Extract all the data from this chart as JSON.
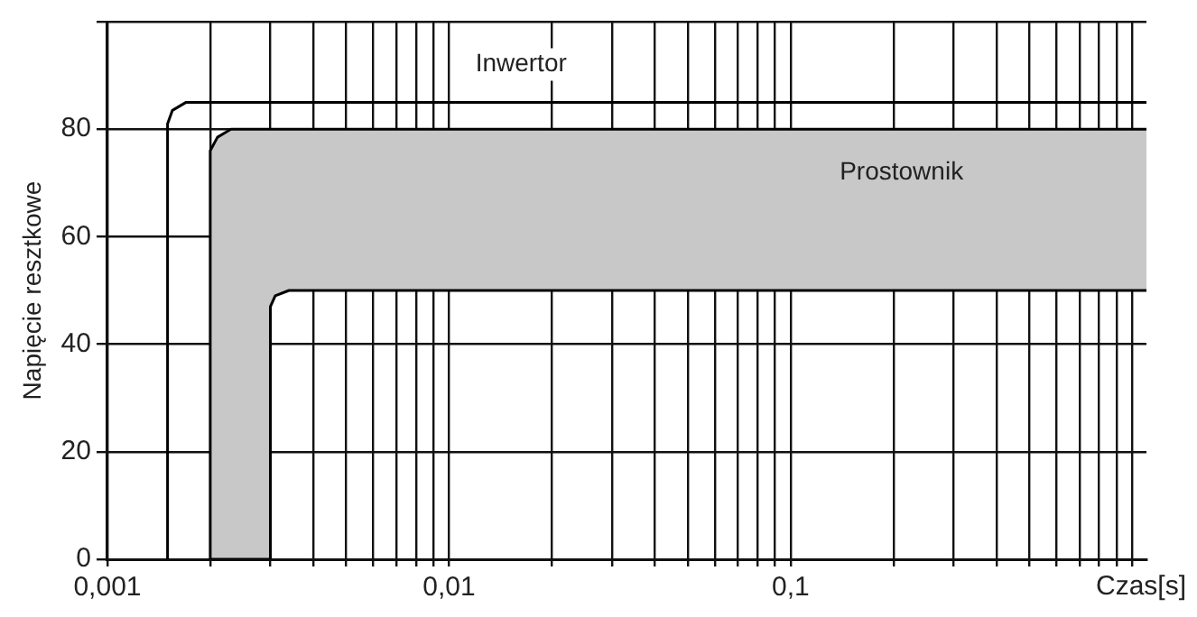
{
  "chart_data": {
    "type": "line",
    "xlabel": "Czas[s]",
    "ylabel": "Napięcie resztkowe",
    "log": "x",
    "grid": true,
    "legend": false,
    "marker": "none",
    "line_style": "solid",
    "xlim": [
      0.001,
      1.1
    ],
    "ylim": [
      0,
      100
    ],
    "xticks": [
      {
        "value": 0.001,
        "label": "0,001"
      },
      {
        "value": 0.002,
        "label": null
      },
      {
        "value": 0.003,
        "label": null
      },
      {
        "value": 0.004,
        "label": null
      },
      {
        "value": 0.005,
        "label": null
      },
      {
        "value": 0.006,
        "label": null
      },
      {
        "value": 0.007,
        "label": null
      },
      {
        "value": 0.008,
        "label": null
      },
      {
        "value": 0.009,
        "label": null
      },
      {
        "value": 0.01,
        "label": "0,01"
      },
      {
        "value": 0.02,
        "label": null
      },
      {
        "value": 0.03,
        "label": null
      },
      {
        "value": 0.04,
        "label": null
      },
      {
        "value": 0.05,
        "label": null
      },
      {
        "value": 0.06,
        "label": null
      },
      {
        "value": 0.07,
        "label": null
      },
      {
        "value": 0.08,
        "label": null
      },
      {
        "value": 0.09,
        "label": null
      },
      {
        "value": 0.1,
        "label": "0,1"
      },
      {
        "value": 0.2,
        "label": null
      },
      {
        "value": 0.3,
        "label": null
      },
      {
        "value": 0.4,
        "label": null
      },
      {
        "value": 0.5,
        "label": null
      },
      {
        "value": 0.6,
        "label": null
      },
      {
        "value": 0.7,
        "label": null
      },
      {
        "value": 0.8,
        "label": null
      },
      {
        "value": 0.9,
        "label": null
      },
      {
        "value": 1,
        "label": null
      }
    ],
    "yticks": [
      0,
      20,
      40,
      60,
      80,
      {
        "value": 100,
        "label": null
      }
    ],
    "series": [
      {
        "name": "Inwertor",
        "color": "#000000",
        "x": [
          0.0015,
          0.0015,
          0.00155,
          0.0017,
          0.0019,
          1.1
        ],
        "values": [
          0,
          81,
          83.5,
          85,
          85,
          85
        ]
      },
      {
        "name": "Prostownik",
        "type": "area",
        "color": "#c8c8c8",
        "x": [
          0.002,
          0.002,
          0.0021,
          0.0023,
          0.003,
          0.003,
          0.0031,
          0.0034,
          1.1
        ],
        "values": [
          0,
          76,
          78.5,
          80,
          80,
          80,
          80,
          80,
          80
        ]
      },
      {
        "type": "line",
        "color": "#000000",
        "x": [
          0.002,
          0.002,
          0.0021,
          0.0023,
          0.003,
          0.003,
          0.0031,
          0.0034,
          1.1
        ],
        "values": [
          0,
          0,
          0,
          0,
          0,
          47,
          49,
          50,
          50
        ]
      }
    ]
  }
}
